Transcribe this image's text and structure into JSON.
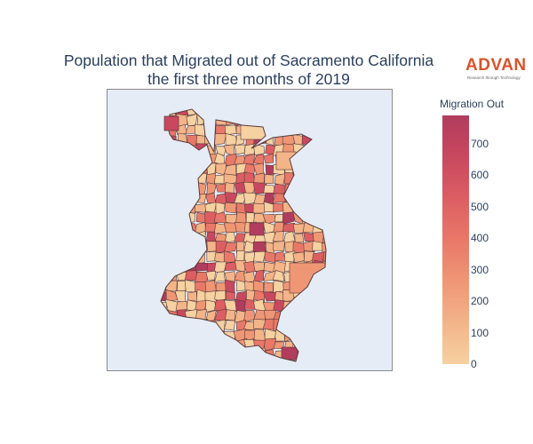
{
  "title": {
    "line1": "Population that Migrated out of Sacramento California",
    "line2": "the first three months of 2019"
  },
  "logo": {
    "name": "ADVAN",
    "tagline": "Research through Technology"
  },
  "colorbar": {
    "title": "Migration Out",
    "ticks": [
      "0",
      "100",
      "200",
      "300",
      "400",
      "500",
      "600",
      "700"
    ],
    "min": 0,
    "max": 790,
    "colors": [
      "#f6d1a1",
      "#f3b488",
      "#ef9675",
      "#e97869",
      "#dc5e63",
      "#c9485f",
      "#b13c5e"
    ]
  },
  "chart_data": {
    "type": "choropleth",
    "title": "Population that Migrated out of Sacramento California the first three months of 2019",
    "color_scale": "sunsetdark (light peach to dark rose)",
    "colorbar_title": "Migration Out",
    "value_range": [
      0,
      790
    ],
    "background": "#e5ecf6",
    "region_outline": "#5a3a3a"
  }
}
